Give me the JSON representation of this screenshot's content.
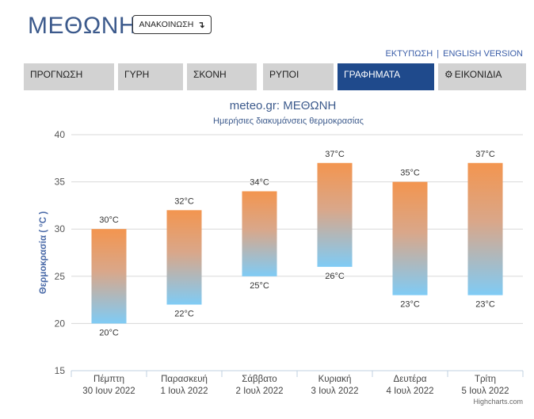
{
  "header": {
    "title": "ΜΕΘΩΝΗ",
    "announce_label": "ΑΝΑΚΟΙΝΩΣΗ",
    "announce_icon": "arrow-down-icon",
    "print_link": "ΕΚΤΥΠΩΣΗ",
    "link_separator": "|",
    "english_link": "ENGLISH VERSION"
  },
  "tabs": [
    {
      "label": "ΠΡΟΓΝΩΣΗ",
      "active": false
    },
    {
      "label": "ΓΥΡΗ",
      "active": false
    },
    {
      "label": "ΣΚΟΝΗ",
      "active": false
    },
    {
      "label": "ΡΥΠΟΙ",
      "active": false
    },
    {
      "label": "ΓΡΑΦΗΜΑΤΑ",
      "active": true
    },
    {
      "label": "ΕΙΚΟΝΙΔΙΑ",
      "active": false,
      "icon": "gear-icon"
    }
  ],
  "colors": {
    "active_tab": "#1f4a8c",
    "bar_top": "#f3954f",
    "bar_bottom": "#7fcbf5",
    "title": "#3c5a8c"
  },
  "chart_data": {
    "type": "bar",
    "subtype": "range",
    "title": "meteo.gr: ΜΕΘΩΝΗ",
    "subtitle": "Ημερήσιες διακυμάνσεις θερμοκρασίας",
    "ylabel": "Θερμοκρασία ( °C )",
    "ylim": [
      15,
      40
    ],
    "yticks": [
      15,
      20,
      25,
      30,
      35,
      40
    ],
    "grid": true,
    "categories": [
      [
        "Πέμπτη",
        "30 Ιουν 2022"
      ],
      [
        "Παρασκευή",
        "1 Ιουλ 2022"
      ],
      [
        "Σάββατο",
        "2 Ιουλ 2022"
      ],
      [
        "Κυριακή",
        "3 Ιουλ 2022"
      ],
      [
        "Δευτέρα",
        "4 Ιουλ 2022"
      ],
      [
        "Τρίτη",
        "5 Ιουλ 2022"
      ]
    ],
    "low": [
      20,
      22,
      25,
      26,
      23,
      23
    ],
    "high": [
      30,
      32,
      34,
      37,
      35,
      37
    ],
    "unit": "°C",
    "credits": "Highcharts.com"
  }
}
